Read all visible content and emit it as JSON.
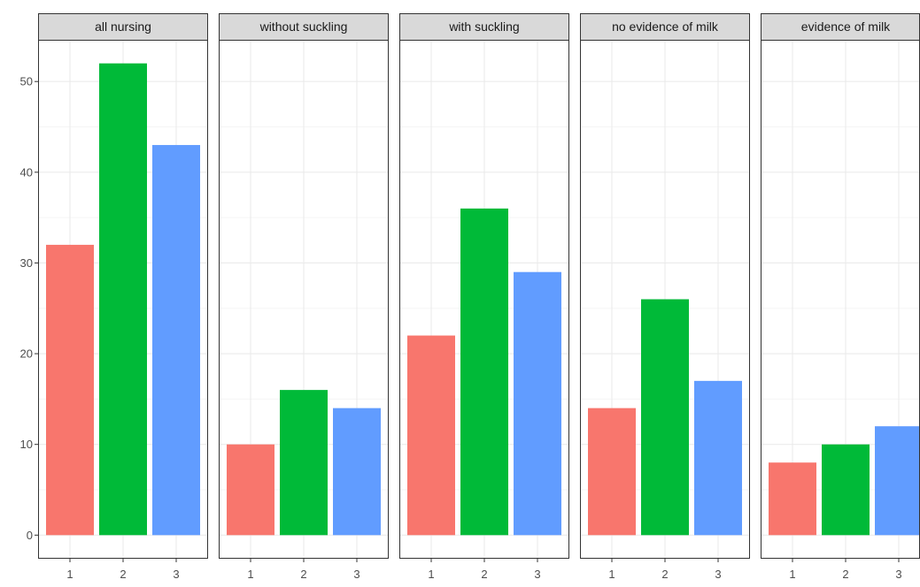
{
  "chart_data": {
    "type": "bar",
    "facet_by": "panel",
    "categories": [
      "1",
      "2",
      "3"
    ],
    "panels": [
      {
        "title": "all nursing",
        "values": [
          32,
          52,
          43
        ]
      },
      {
        "title": "without suckling",
        "values": [
          10,
          16,
          14
        ]
      },
      {
        "title": "with suckling",
        "values": [
          22,
          36,
          29
        ]
      },
      {
        "title": "no evidence of milk",
        "values": [
          14,
          26,
          17
        ]
      },
      {
        "title": "evidence of milk",
        "values": [
          8,
          10,
          12
        ]
      }
    ],
    "category_colors": [
      "#F8766D",
      "#00BA38",
      "#619CFF"
    ],
    "y_ticks": [
      0,
      10,
      20,
      30,
      40,
      50
    ],
    "ylim": [
      -2.6,
      54.6
    ],
    "xlabel": "",
    "ylabel": "",
    "grid": true,
    "legend": "none",
    "theme": {
      "panel_border": "#333333",
      "strip_fill": "#d9d9d9",
      "grid_major": "#ebebeb",
      "grid_minor": "#f5f5f5",
      "axis_text": "#4d4d4d"
    }
  }
}
